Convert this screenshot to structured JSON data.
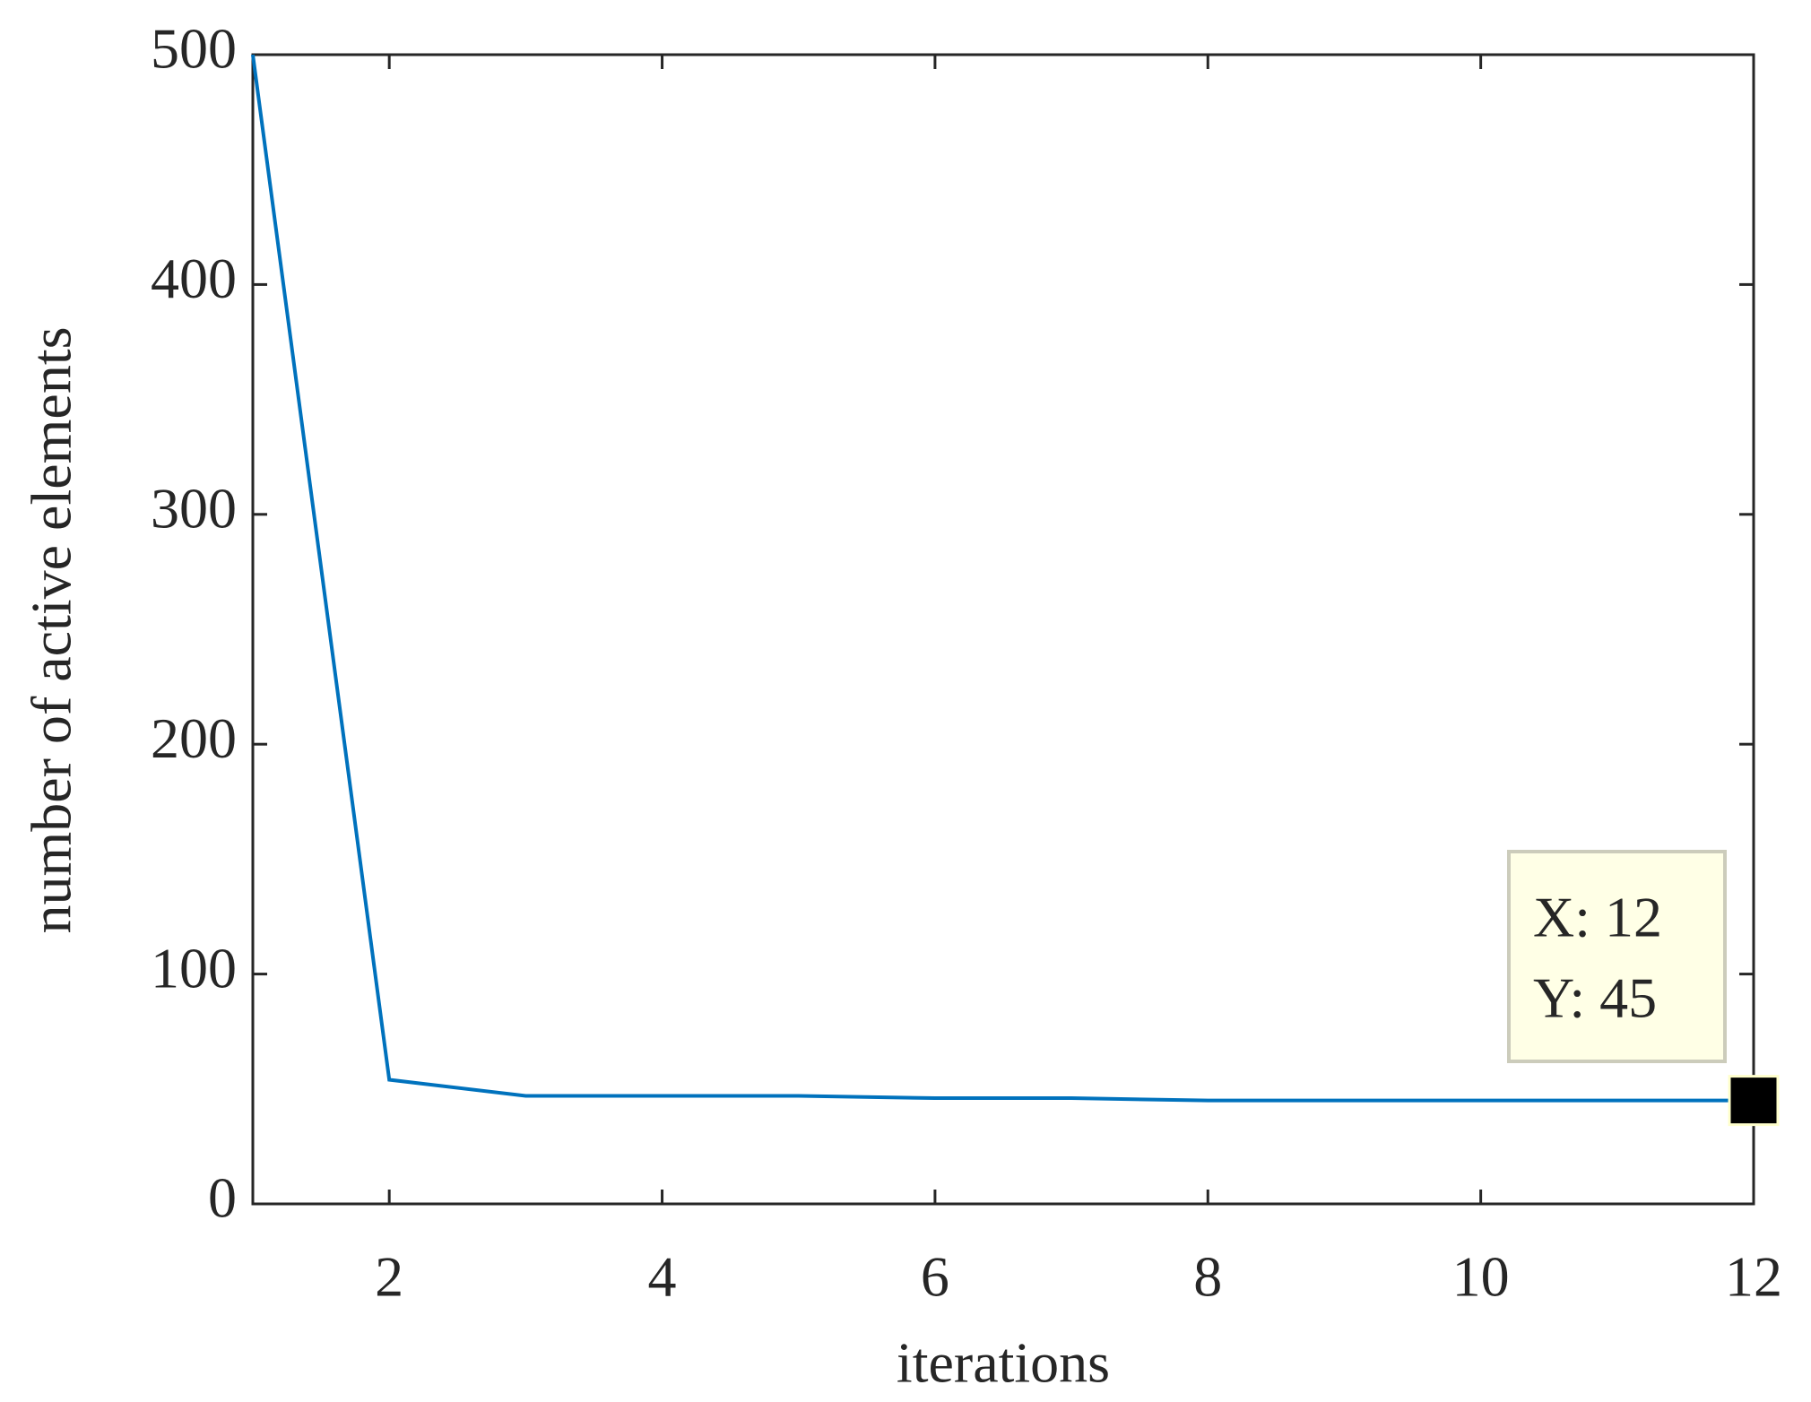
{
  "chart_data": {
    "type": "line",
    "x_label": "iterations",
    "y_label": "number of active elements",
    "x": [
      1,
      2,
      3,
      4,
      5,
      6,
      7,
      8,
      9,
      10,
      11,
      12
    ],
    "values": [
      500,
      54,
      47,
      47,
      47,
      46,
      46,
      45,
      45,
      45,
      45,
      45
    ],
    "color": "#0072bd",
    "xlim": [
      1,
      12
    ],
    "xticks": [
      2,
      4,
      6,
      8,
      10,
      12
    ],
    "ylim": [
      0,
      500
    ],
    "yticks": [
      0,
      100,
      200,
      300,
      400,
      500
    ],
    "annotations": [
      "X: 12",
      "Y: 45"
    ]
  }
}
